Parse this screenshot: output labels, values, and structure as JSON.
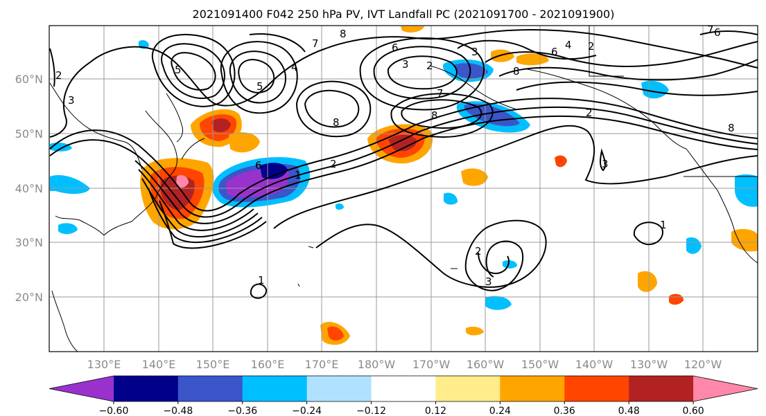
{
  "title": "2021091400 F042 250 hPa PV, IVT Landfall PC (2021091700 - 2021091900)",
  "latitude_labels": [
    "60°N",
    "50°N",
    "40°N",
    "30°N",
    "20°N"
  ],
  "longitude_labels": [
    "130°E",
    "140°E",
    "150°E",
    "160°E",
    "170°E",
    "180°W",
    "170°W",
    "160°W",
    "150°W",
    "140°W",
    "130°W",
    "120°W"
  ],
  "colorbar": {
    "colors": [
      "#9932cc",
      "#00008b",
      "#3a56c9",
      "#00bfff",
      "#b0e2ff",
      "#ffffff",
      "#ffec8b",
      "#ffa500",
      "#ff4500",
      "#b22222",
      "#ff88aa"
    ],
    "tick_labels": [
      "−0.60",
      "−0.48",
      "−0.36",
      "−0.24",
      "−0.12",
      "0.12",
      "0.24",
      "0.36",
      "0.48",
      "0.60"
    ]
  },
  "contour_labels": [
    "8",
    "7",
    "6",
    "5",
    "4",
    "3",
    "2",
    "1"
  ]
}
